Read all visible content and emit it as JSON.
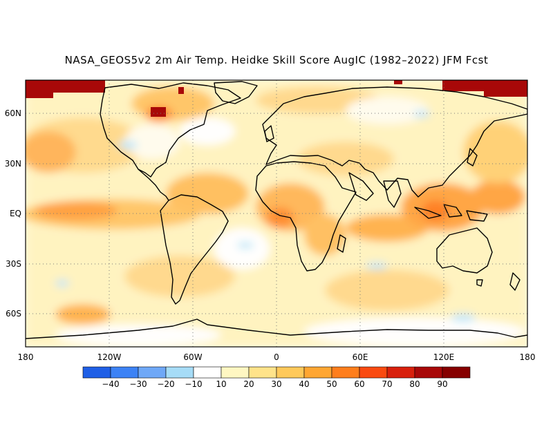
{
  "title": "NASA_GEOS5v2 2m Air Temp. Heidke Skill Score AugIC (1982–2022) JFM Fcst",
  "lat_ticks": [
    "60N",
    "30N",
    "EQ",
    "30S",
    "60S"
  ],
  "lon_ticks": [
    "180",
    "120W",
    "60W",
    "0",
    "60E",
    "120E",
    "180"
  ],
  "colorbar": {
    "labels": [
      "−40",
      "−30",
      "−20",
      "−10",
      "10",
      "20",
      "30",
      "40",
      "50",
      "60",
      "70",
      "80",
      "90"
    ],
    "colors": [
      "#1f5fe6",
      "#3c82f5",
      "#6fa8f7",
      "#a6dcf7",
      "#ffffff",
      "#fff7c2",
      "#ffe38a",
      "#ffc95a",
      "#ffa632",
      "#ff7e1c",
      "#fa4a10",
      "#d8200c",
      "#a80808",
      "#860000"
    ]
  }
}
